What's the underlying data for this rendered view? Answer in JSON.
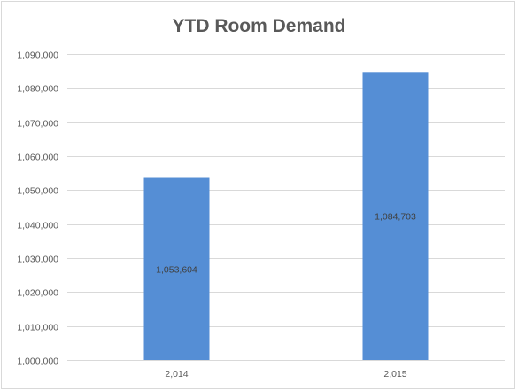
{
  "chart_data": {
    "type": "bar",
    "title": "YTD Room Demand",
    "xlabel": "",
    "ylabel": "",
    "categories": [
      "2,014",
      "2,015"
    ],
    "values": [
      1053604,
      1084703
    ],
    "value_labels": [
      "1,053,604",
      "1,084,703"
    ],
    "ylim": [
      1000000,
      1090000
    ],
    "yticks": [
      1000000,
      1010000,
      1020000,
      1030000,
      1040000,
      1050000,
      1060000,
      1070000,
      1080000,
      1090000
    ],
    "ytick_labels": [
      "1,000,000",
      "1,010,000",
      "1,020,000",
      "1,030,000",
      "1,040,000",
      "1,050,000",
      "1,060,000",
      "1,070,000",
      "1,080,000",
      "1,090,000"
    ],
    "grid": true,
    "legend": "none",
    "bar_color": "#558ED5",
    "grid_color": "#d9d9d9"
  }
}
